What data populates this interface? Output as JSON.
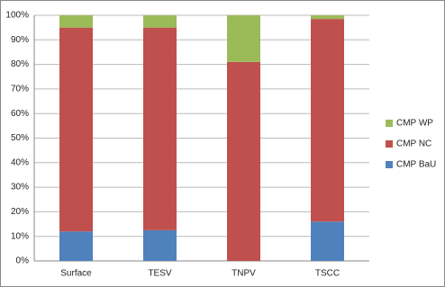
{
  "chart_data": {
    "type": "stacked_bar",
    "categories": [
      "Surface",
      "TESV",
      "TNPV",
      "TSCC"
    ],
    "series": [
      {
        "name": "CMP BaU",
        "color": "#4f81bd",
        "values": [
          12,
          12.5,
          0,
          16
        ]
      },
      {
        "name": "CMP NC",
        "color": "#c0504d",
        "values": [
          83,
          82.5,
          81,
          82.5
        ]
      },
      {
        "name": "CMP WP",
        "color": "#9bbb59",
        "values": [
          5,
          5,
          19,
          1.5
        ]
      }
    ],
    "ylim": [
      0,
      100
    ],
    "yticks": [
      {
        "value": 0,
        "label": "0%"
      },
      {
        "value": 10,
        "label": "10%"
      },
      {
        "value": 20,
        "label": "20%"
      },
      {
        "value": 30,
        "label": "30%"
      },
      {
        "value": 40,
        "label": "40%"
      },
      {
        "value": 50,
        "label": "50%"
      },
      {
        "value": 60,
        "label": "60%"
      },
      {
        "value": 70,
        "label": "70%"
      },
      {
        "value": 80,
        "label": "80%"
      },
      {
        "value": 90,
        "label": "90%"
      },
      {
        "value": 100,
        "label": "100%"
      }
    ],
    "grid": true,
    "legend": "right"
  }
}
